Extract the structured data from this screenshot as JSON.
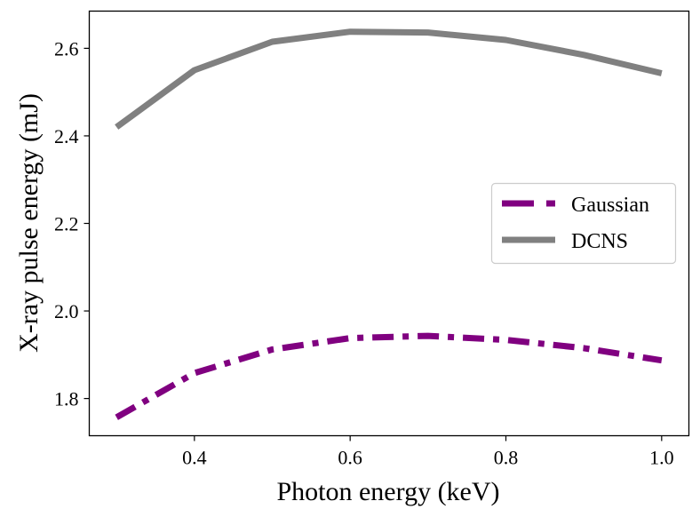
{
  "chart_data": {
    "type": "line",
    "title": "",
    "xlabel": "Photon energy (keV)",
    "ylabel": "X-ray pulse energy (mJ)",
    "xlim": [
      0.265,
      1.035
    ],
    "ylim": [
      1.715,
      2.685
    ],
    "xticks": [
      0.4,
      0.6,
      0.8,
      1.0
    ],
    "xtick_labels": [
      "0.4",
      "0.6",
      "0.8",
      "1.0"
    ],
    "yticks": [
      1.8,
      2.0,
      2.2,
      2.4,
      2.6
    ],
    "ytick_labels": [
      "1.8",
      "2.0",
      "2.2",
      "2.4",
      "2.6"
    ],
    "grid": false,
    "legend_position": "center-right",
    "x": [
      0.3,
      0.4,
      0.5,
      0.6,
      0.7,
      0.8,
      0.9,
      1.0
    ],
    "series": [
      {
        "name": "Gaussian",
        "color": "#800080",
        "style": "dashdot",
        "values": [
          1.757,
          1.858,
          1.912,
          1.938,
          1.943,
          1.934,
          1.915,
          1.887
        ]
      },
      {
        "name": "DCNS",
        "color": "#808080",
        "style": "solid",
        "values": [
          2.42,
          2.55,
          2.615,
          2.638,
          2.636,
          2.619,
          2.585,
          2.543
        ]
      }
    ]
  }
}
